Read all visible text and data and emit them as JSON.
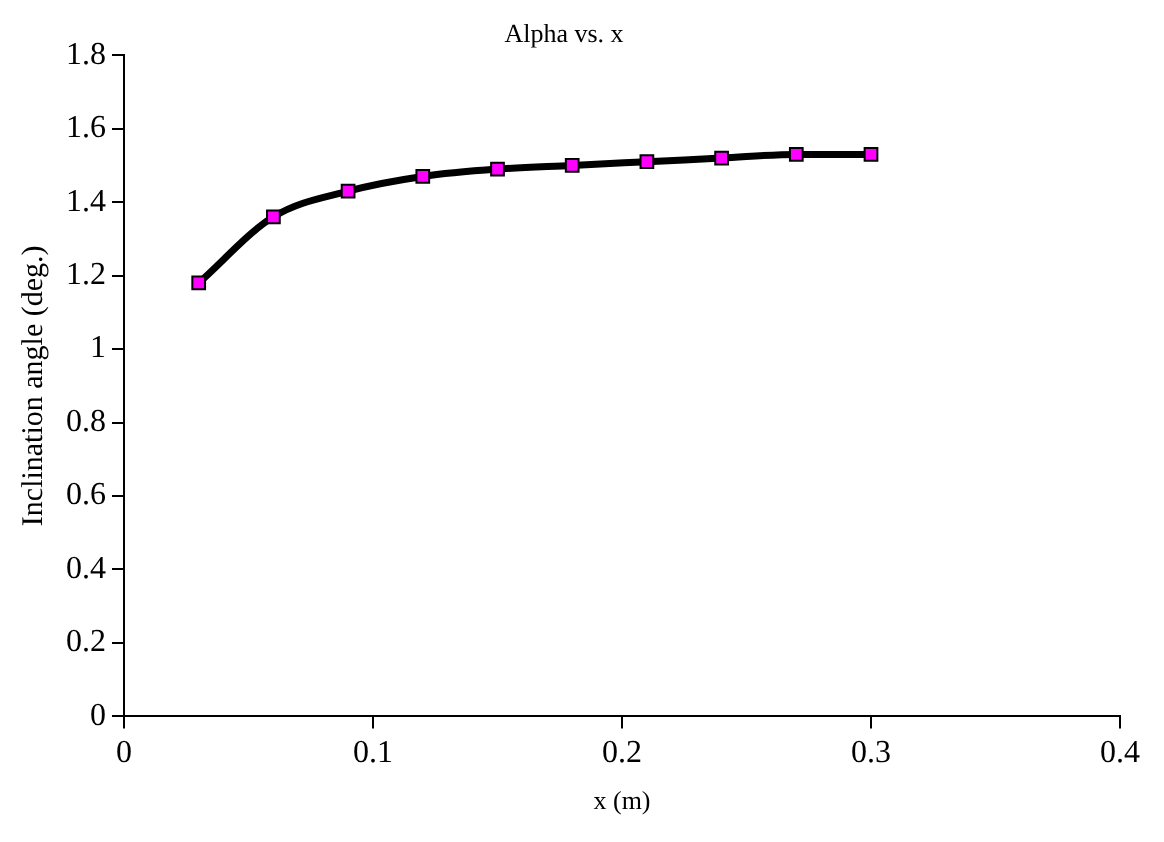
{
  "chart_data": {
    "type": "line",
    "title": "Alpha vs. x",
    "xlabel": "x (m)",
    "ylabel": "Inclination angle (deg.)",
    "x": [
      0.03,
      0.06,
      0.09,
      0.12,
      0.15,
      0.18,
      0.21,
      0.24,
      0.27,
      0.3
    ],
    "series": [
      {
        "color": "#000000",
        "values": [
          1.18,
          1.36,
          1.43,
          1.47,
          1.49,
          1.5,
          1.51,
          1.52,
          1.53,
          1.53
        ]
      }
    ],
    "xlim": [
      0,
      0.4
    ],
    "xticks": [
      0,
      0.1,
      0.2,
      0.3,
      0.4
    ],
    "ylim": [
      0,
      1.8
    ],
    "yticks": [
      0,
      0.2,
      0.4,
      0.6,
      0.8,
      1,
      1.2,
      1.4,
      1.6,
      1.8
    ],
    "grid": false,
    "legend": false,
    "marker": "square",
    "line_style": "solid"
  }
}
